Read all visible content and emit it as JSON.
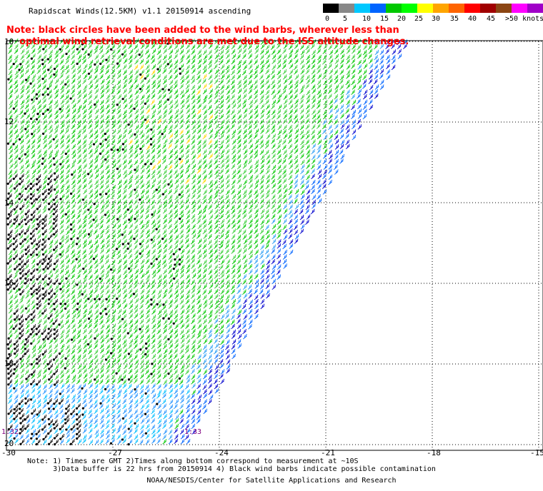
{
  "title": "Rapidscat Winds(12.5KM) v1.1 20150914 ascending",
  "note": {
    "line1": "Note: black circles have been added to the wind barbs, wherever less than",
    "line2": "optimal wind retrieval conditions are met due to the ISS altitude changes."
  },
  "legend": {
    "colors": [
      "#000000",
      "#888888",
      "#00c8ff",
      "#0064ff",
      "#00c800",
      "#00ff00",
      "#ffff00",
      "#ffa500",
      "#ff6400",
      "#ff0000",
      "#a00000",
      "#8b4513",
      "#ff00ff",
      "#a000c8"
    ],
    "labels": [
      "0",
      "5",
      "10",
      "15",
      "20",
      "25",
      "30",
      "35",
      "40",
      "45",
      ">50 knots"
    ]
  },
  "axes": {
    "x_ticks": [
      "-30",
      "-27",
      "-24",
      "-21",
      "-18",
      "-15"
    ],
    "y_ticks": [
      "10",
      "12",
      "14",
      "16",
      "18",
      "20"
    ]
  },
  "time_labels": [
    "1:32",
    "1:33"
  ],
  "footnote": {
    "line1": "Note: 1) Times are GMT 2)Times along bottom correspond to measurement at ~10S",
    "line2": "3)Data buffer is 22 hrs from 20150914 4) Black wind barbs indicate possible contamination"
  },
  "credit": "NOAA/NESDIS/Center for Satellite Applications and Research"
}
